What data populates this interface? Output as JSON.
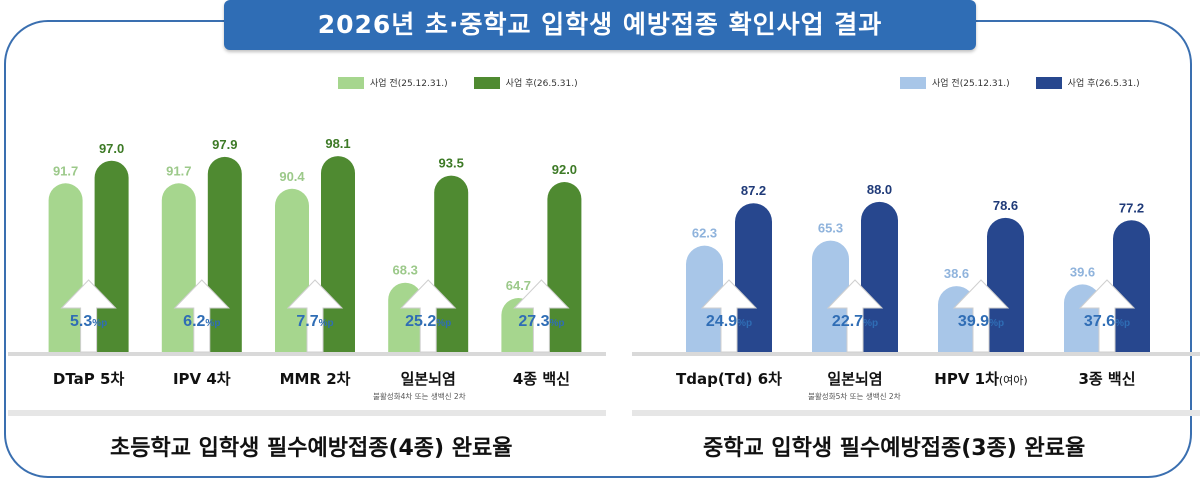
{
  "title": "2026년 초·중학교 입학생 예방접종 확인사업 결과",
  "colors": {
    "left_before": "#a6d68e",
    "left_after": "#4f8a31",
    "right_before": "#a8c6e8",
    "right_after": "#27478e",
    "left_before_label": "#9cc98a",
    "left_after_label": "#3d7a26",
    "right_before_label": "#8fb3dc",
    "right_after_label": "#1f3a78",
    "diff_text": "#2f6db5",
    "frame": "#3a6fb0"
  },
  "panels": {
    "left": {
      "legend": {
        "before": "사업 전(25.12.31.)",
        "after": "사업 후(26.5.31.)"
      },
      "footnote": "불활성화4차 또는 생백신 2차",
      "subtitle": "초등학교 입학생 필수예방접종(4종) 완료율"
    },
    "right": {
      "legend": {
        "before": "사업 전(25.12.31.)",
        "after": "사업 후(26.5.31.)"
      },
      "footnote": "불활성화5차 또는 생백신 2차",
      "subtitle": "중학교 입학생 필수예방접종(3종) 완료율"
    }
  },
  "chart_data": [
    {
      "type": "bar",
      "categories": [
        "DTaP 5차",
        "IPV 4차",
        "MMR 2차",
        "일본뇌염",
        "4종 백신"
      ],
      "series": [
        {
          "name": "사업 전(25.12.31.)",
          "values": [
            91.7,
            91.7,
            90.4,
            68.3,
            64.7
          ]
        },
        {
          "name": "사업 후(26.5.31.)",
          "values": [
            97.0,
            97.9,
            98.1,
            93.5,
            92.0
          ]
        }
      ],
      "diff_labels": [
        "5.3",
        "6.2",
        "7.7",
        "25.2",
        "27.3"
      ],
      "diff_unit": "%p",
      "ylim": [
        0,
        100
      ],
      "title": "초등학교 입학생 필수예방접종(4종) 완료율"
    },
    {
      "type": "bar",
      "categories": [
        "Tdap(Td) 6차",
        "일본뇌염",
        "HPV 1차",
        "3종 백신"
      ],
      "category_suffix": [
        "",
        "",
        "(여아)",
        ""
      ],
      "series": [
        {
          "name": "사업 전(25.12.31.)",
          "values": [
            62.3,
            65.3,
            38.6,
            39.6
          ]
        },
        {
          "name": "사업 후(26.5.31.)",
          "values": [
            87.2,
            88.0,
            78.6,
            77.2
          ]
        }
      ],
      "diff_labels": [
        "24.9",
        "22.7",
        "39.9",
        "37.6"
      ],
      "diff_unit": "%p",
      "ylim": [
        0,
        100
      ],
      "title": "중학교 입학생 필수예방접종(3종) 완료율"
    }
  ]
}
